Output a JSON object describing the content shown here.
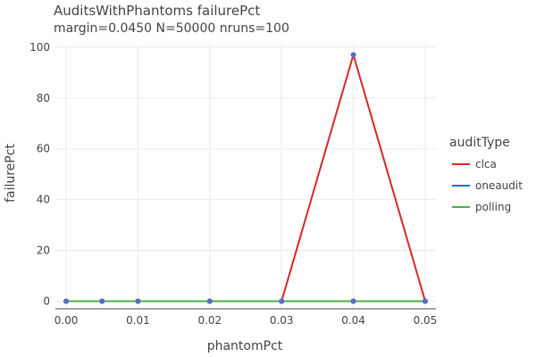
{
  "chart_data": {
    "type": "line",
    "title": "AuditsWithPhantoms failurePct",
    "subtitle": "margin=0.0450 N=50000 nruns=100",
    "xlabel": "phantomPct",
    "ylabel": "failurePct",
    "xlim": [
      -0.0015,
      0.0515
    ],
    "ylim": [
      -3,
      101
    ],
    "xticks": [
      "0.00",
      "0.01",
      "0.02",
      "0.03",
      "0.04",
      "0.05"
    ],
    "xtick_values": [
      0,
      0.01,
      0.02,
      0.03,
      0.04,
      0.05
    ],
    "yticks": [
      "0",
      "20",
      "40",
      "60",
      "80",
      "100"
    ],
    "ytick_values": [
      0,
      20,
      40,
      60,
      80,
      100
    ],
    "grid": true,
    "legend": {
      "title": "auditType",
      "position": "right"
    },
    "series": [
      {
        "name": "clca",
        "color": "#d62728",
        "x": [
          0,
          0.005,
          0.01,
          0.02,
          0.03,
          0.04,
          0.05
        ],
        "y": [
          0,
          0,
          0,
          0,
          0,
          97,
          0
        ]
      },
      {
        "name": "oneaudit",
        "color": "#1f77b4",
        "x": [
          0,
          0.005,
          0.01,
          0.02,
          0.03,
          0.04,
          0.05
        ],
        "y": [
          0,
          0,
          0,
          0,
          0,
          0,
          0
        ]
      },
      {
        "name": "polling",
        "color": "#4daf4a",
        "x": [
          0,
          0.005,
          0.01,
          0.02,
          0.03,
          0.04,
          0.05
        ],
        "y": [
          0,
          0,
          0,
          0,
          0,
          0,
          0
        ]
      }
    ],
    "marker_color": "#5a6bc8"
  }
}
